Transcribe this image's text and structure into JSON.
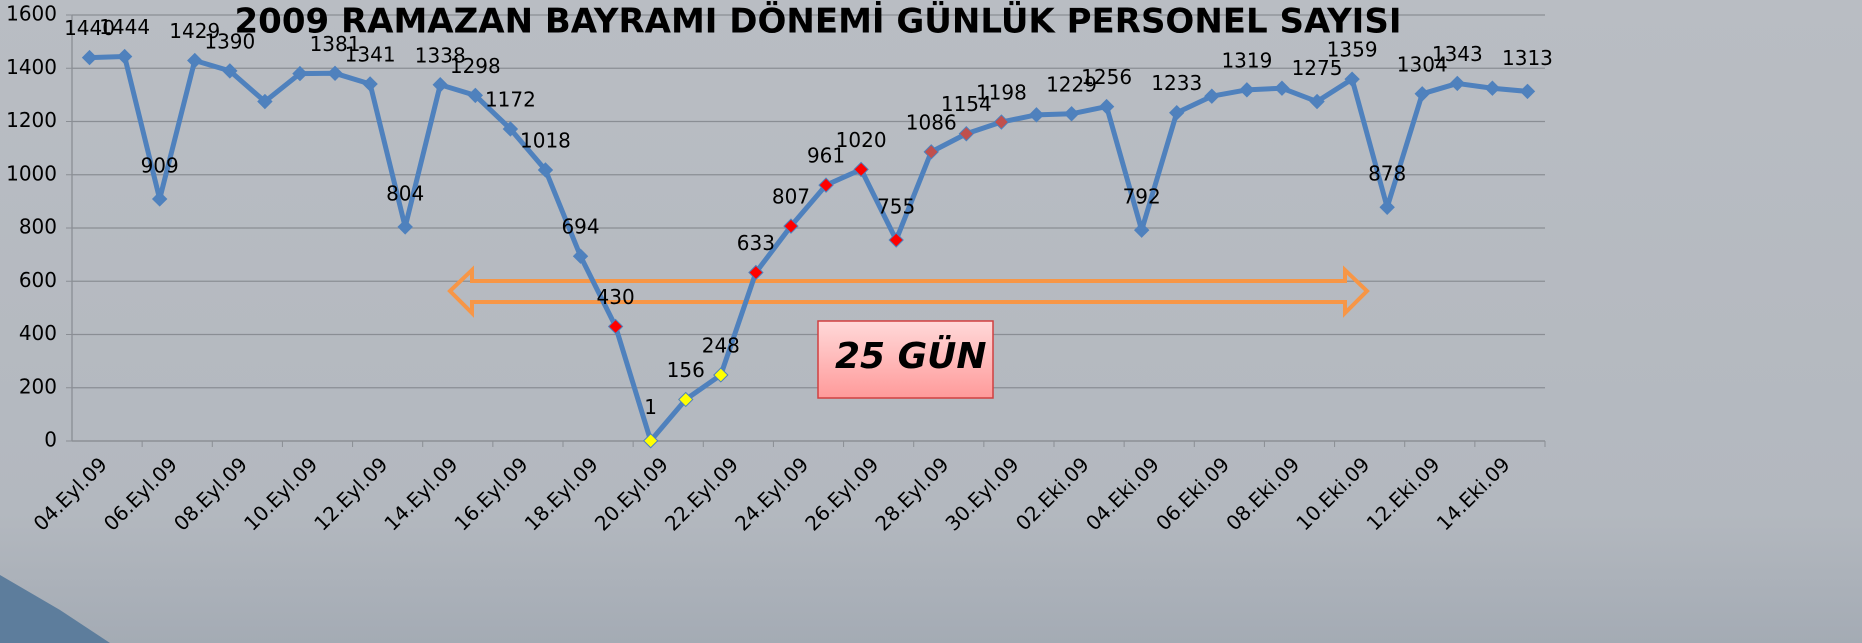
{
  "chart_data": {
    "type": "line",
    "title": "2009 RAMAZAN BAYRAMI DÖNEMİ GÜNLÜK PERSONEL SAYISI",
    "categories": [
      "04.Eyl.09",
      null,
      "06.Eyl.09",
      null,
      "08.Eyl.09",
      null,
      "10.Eyl.09",
      null,
      "12.Eyl.09",
      null,
      "14.Eyl.09",
      null,
      "16.Eyl.09",
      null,
      "18.Eyl.09",
      null,
      "20.Eyl.09",
      null,
      "22.Eyl.09",
      null,
      "24.Eyl.09",
      null,
      "26.Eyl.09",
      null,
      "28.Eyl.09",
      null,
      "30.Eyl.09",
      null,
      "02.Eki.09",
      null,
      "04.Eki.09",
      null,
      "06.Eki.09",
      null,
      "08.Eki.09",
      null,
      "10.Eki.09",
      null,
      "12.Eki.09",
      null,
      "14.Eki.09",
      null
    ],
    "series": [
      {
        "color": "#4f81bd",
        "values": [
          1440,
          1444,
          909,
          1429,
          1390,
          1275,
          1380,
          1381,
          1341,
          804,
          1338,
          1298,
          1172,
          1018,
          694,
          430,
          1,
          156,
          248,
          633,
          807,
          961,
          1020,
          755,
          1086,
          1154,
          1198,
          1225,
          1229,
          1256,
          792,
          1233,
          1295,
          1319,
          1325,
          1275,
          1359,
          878,
          1304,
          1343,
          1325,
          1313
        ],
        "value_labels": [
          1440,
          1444,
          909,
          1429,
          1390,
          null,
          null,
          1381,
          1341,
          804,
          1338,
          1298,
          1172,
          1018,
          694,
          430,
          1,
          156,
          248,
          633,
          807,
          961,
          1020,
          755,
          1086,
          1154,
          1198,
          null,
          1229,
          1256,
          792,
          1233,
          null,
          1319,
          null,
          1275,
          1359,
          878,
          1304,
          1343,
          null,
          1313
        ],
        "marker_colors": [
          "#4f81bd",
          "#4f81bd",
          "#4f81bd",
          "#4f81bd",
          "#4f81bd",
          "#4f81bd",
          "#4f81bd",
          "#4f81bd",
          "#4f81bd",
          "#4f81bd",
          "#4f81bd",
          "#4f81bd",
          "#4f81bd",
          "#4f81bd",
          "#4f81bd",
          "#ff0000",
          "#ffff00",
          "#ffff00",
          "#ffff00",
          "#ff0000",
          "#ff0000",
          "#ff0000",
          "#ff0000",
          "#ff0000",
          "#c0504d",
          "#c0504d",
          "#c0504d",
          "#4f81bd",
          "#4f81bd",
          "#4f81bd",
          "#4f81bd",
          "#4f81bd",
          "#4f81bd",
          "#4f81bd",
          "#4f81bd",
          "#4f81bd",
          "#4f81bd",
          "#4f81bd",
          "#4f81bd",
          "#4f81bd",
          "#4f81bd",
          "#4f81bd"
        ]
      }
    ],
    "ylim": [
      0,
      1600
    ],
    "yticks": [
      0,
      200,
      400,
      600,
      800,
      1000,
      1200,
      1400,
      1600
    ],
    "grid": true,
    "annotations": [
      "25 GÜN"
    ]
  }
}
